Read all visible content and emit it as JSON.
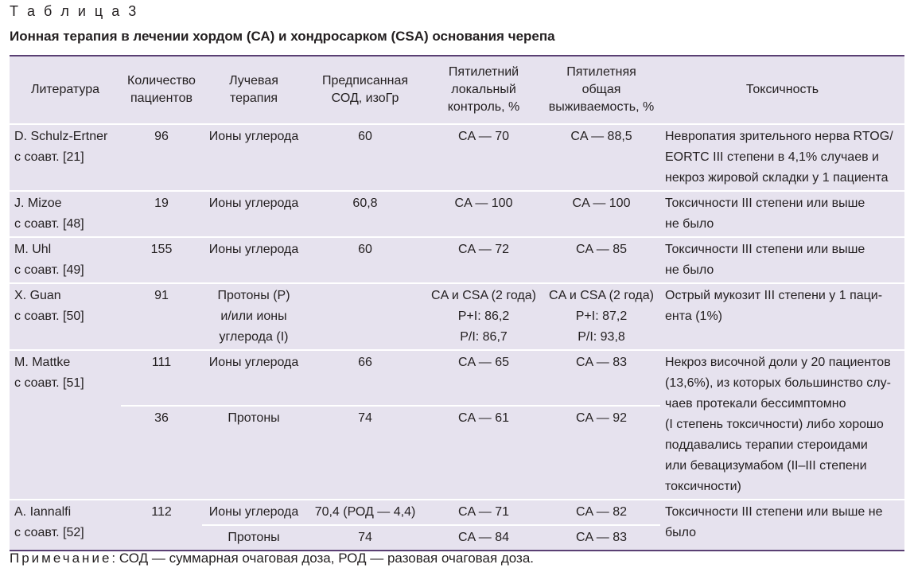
{
  "caption": "Т а б л и ц а  3",
  "title": "Ионная терапия в лечении хордом (СА) и хондросарком (CSA) основания черепа",
  "table": {
    "headers": [
      "Литература",
      "Количество\nпациентов",
      "Лучевая\nтерапия",
      "Предписанная\nСОД, изоГр",
      "Пятилетний\nлокальный\nконтроль, %",
      "Пятилетняя\nобщая\nвыживаемость, %",
      "Токсичность"
    ],
    "rows": [
      {
        "literature": "D. Schulz-Ertner\nс соавт. [21]",
        "patients": "96",
        "therapy": "Ионы углерода",
        "dose": "60",
        "local_control": "CA — 70",
        "survival": "CA — 88,5",
        "toxicity": "Невропатия зрительного нерва RTOG/\nEORTC III степени в 4,1% случаев и\nнекроз жировой складки у 1 пациента"
      },
      {
        "literature": "J. Mizoe\nс соавт. [48]",
        "patients": "19",
        "therapy": "Ионы углерода",
        "dose": "60,8",
        "local_control": "CA — 100",
        "survival": "CA — 100",
        "toxicity": "Токсичности III степени или выше\nне было"
      },
      {
        "literature": "M. Uhl\nс соавт. [49]",
        "patients": "155",
        "therapy": "Ионы углерода",
        "dose": "60",
        "local_control": "CA — 72",
        "survival": "CA — 85",
        "toxicity": "Токсичности III степени или выше\nне было"
      },
      {
        "literature": "X. Guan\nс соавт. [50]",
        "patients": "91",
        "therapy": "Протоны (P)\nи/или ионы\nуглерода (I)",
        "dose": "",
        "local_control": "CA и CSA (2 года)\nP+I: 86,2\nP/I: 86,7",
        "survival": "CA и CSA (2 года)\nP+I: 87,2\nP/I: 93,8",
        "toxicity": "Острый мукозит III степени у 1 паци-\nента (1%)"
      }
    ],
    "mattke": {
      "literature": "M. Mattke\nс соавт. [51]",
      "toxicity": "Некроз височной доли у 20 пациентов\n(13,6%), из которых большинство слу-\nчаев протекали бессимптомно\n(I степень токсичности) либо хорошо\nподдавались терапии стероидами\nили бевацизумабом (II–III степени\nтоксичности)",
      "sub": [
        {
          "patients": "111",
          "therapy": "Ионы углерода",
          "dose": "66",
          "local_control": "CA — 65",
          "survival": "CA — 83"
        },
        {
          "patients": "36",
          "therapy": "Протоны",
          "dose": "74",
          "local_control": "CA — 61",
          "survival": "CA — 92"
        }
      ]
    },
    "iannalfi": {
      "literature": "A. Iannalfi\nс соавт. [52]",
      "patients": "112",
      "toxicity": "Токсичности III степени или выше не\nбыло",
      "sub": [
        {
          "therapy": "Ионы углерода",
          "dose": "70,4 (РОД — 4,4)",
          "local_control": "CA — 71",
          "survival": "CA — 82"
        },
        {
          "therapy": "Протоны",
          "dose": "74",
          "local_control": "CA — 84",
          "survival": "CA — 83"
        }
      ]
    }
  },
  "note": {
    "label": "Примечание",
    "text": ": СОД — суммарная очаговая доза, РОД — разовая очаговая доза."
  },
  "colors": {
    "table_background": "#e6e2ee",
    "rule": "#5a3f73",
    "text": "#231f20"
  }
}
